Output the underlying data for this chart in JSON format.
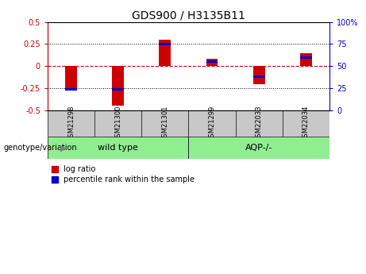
{
  "title": "GDS900 / H3135B11",
  "samples": [
    "GSM21298",
    "GSM21300",
    "GSM21301",
    "GSM21299",
    "GSM22033",
    "GSM22034"
  ],
  "log_ratio": [
    -0.27,
    -0.45,
    0.3,
    0.08,
    -0.2,
    0.15
  ],
  "percentile_rank_raw": [
    24,
    24,
    75,
    55,
    38,
    60
  ],
  "ylim_left": [
    -0.5,
    0.5
  ],
  "ylim_right": [
    0,
    100
  ],
  "yticks_left": [
    -0.5,
    -0.25,
    0.0,
    0.25,
    0.5
  ],
  "yticks_right": [
    0,
    25,
    50,
    75,
    100
  ],
  "group_wt_indices": [
    0,
    1,
    2
  ],
  "group_aqp_indices": [
    3,
    4,
    5
  ],
  "group_wt_label": "wild type",
  "group_aqp_label": "AQP-/-",
  "group_color": "#90EE90",
  "bar_color_red": "#CC0000",
  "bar_color_blue": "#0000CC",
  "bar_width": 0.25,
  "sample_label_area_color": "#C8C8C8",
  "zero_line_color": "#CC0000",
  "grid_color": "black",
  "genotype_label": "genotype/variation",
  "legend_label_red": "log ratio",
  "legend_label_blue": "percentile rank within the sample",
  "title_fontsize": 10,
  "tick_fontsize": 7,
  "label_fontsize": 7.5
}
